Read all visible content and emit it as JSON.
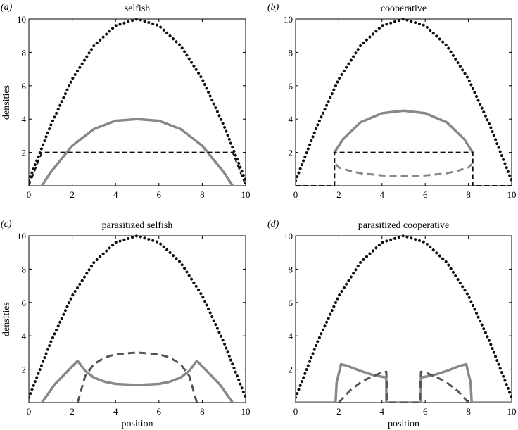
{
  "chart_data": [
    {
      "type": "line",
      "panel_label": "(a)",
      "title": "selfish",
      "xlabel": "",
      "ylabel": "densities",
      "xlim": [
        0,
        10
      ],
      "ylim": [
        0,
        10
      ],
      "xticks": [
        "0",
        "2",
        "4",
        "6",
        "8",
        "10"
      ],
      "yticks": [
        "2",
        "4",
        "6",
        "8",
        "10"
      ],
      "series": [
        {
          "style": "dotted",
          "color": "#111111",
          "x": [
            0,
            1,
            2,
            3,
            4,
            5,
            6,
            7,
            8,
            9,
            10
          ],
          "y": [
            0.3,
            3.6,
            6.4,
            8.4,
            9.6,
            10,
            9.6,
            8.4,
            6.4,
            3.6,
            0.3
          ]
        },
        {
          "style": "solid",
          "color": "#888888",
          "x": [
            0.6,
            1.0,
            2.0,
            3.0,
            4.0,
            5.0,
            6.0,
            7.0,
            8.0,
            9.0,
            9.4
          ],
          "y": [
            0,
            0.8,
            2.4,
            3.4,
            3.9,
            4.0,
            3.9,
            3.4,
            2.4,
            0.8,
            0
          ]
        },
        {
          "style": "dashed",
          "color": "#111111",
          "x": [
            0,
            0.6,
            9.4,
            10
          ],
          "y": [
            0,
            2.0,
            2.0,
            0
          ]
        }
      ]
    },
    {
      "type": "line",
      "panel_label": "(b)",
      "title": "cooperative",
      "xlabel": "",
      "ylabel": "",
      "xlim": [
        0,
        10
      ],
      "ylim": [
        0,
        10
      ],
      "xticks": [
        "0",
        "2",
        "4",
        "6",
        "8",
        "10"
      ],
      "yticks": [
        "2",
        "4",
        "6",
        "8",
        "10"
      ],
      "series": [
        {
          "style": "dotted",
          "color": "#111111",
          "x": [
            0,
            1,
            2,
            3,
            4,
            5,
            6,
            7,
            8,
            9,
            10
          ],
          "y": [
            0.3,
            3.6,
            6.4,
            8.4,
            9.6,
            10,
            9.6,
            8.4,
            6.4,
            3.6,
            0.3
          ]
        },
        {
          "style": "solid",
          "color": "#888888",
          "x": [
            1.8,
            2.2,
            3.0,
            4.0,
            5.0,
            6.0,
            7.0,
            7.8,
            8.2
          ],
          "y": [
            2.0,
            2.8,
            3.8,
            4.35,
            4.5,
            4.35,
            3.8,
            2.8,
            2.0
          ]
        },
        {
          "style": "dashed",
          "color": "#888888",
          "x": [
            1.85,
            2.0,
            2.5,
            3.0,
            4.0,
            5.0,
            6.0,
            7.0,
            7.5,
            8.0,
            8.15
          ],
          "y": [
            1.3,
            1.1,
            0.9,
            0.75,
            0.62,
            0.58,
            0.62,
            0.75,
            0.9,
            1.1,
            1.3
          ]
        },
        {
          "style": "dashed",
          "color": "#111111",
          "x": [
            0,
            1.8,
            1.8,
            8.2,
            8.2,
            10
          ],
          "y": [
            0,
            0,
            2.0,
            2.0,
            0,
            0
          ]
        }
      ]
    },
    {
      "type": "line",
      "panel_label": "(c)",
      "title": "parasitized selfish",
      "xlabel": "position",
      "ylabel": "densities",
      "xlim": [
        0,
        10
      ],
      "ylim": [
        0,
        10
      ],
      "xticks": [
        "0",
        "2",
        "4",
        "6",
        "8",
        "10"
      ],
      "yticks": [
        "2",
        "4",
        "6",
        "8",
        "10"
      ],
      "series": [
        {
          "style": "dotted",
          "color": "#111111",
          "x": [
            0,
            1,
            2,
            3,
            4,
            5,
            6,
            7,
            8,
            9,
            10
          ],
          "y": [
            0.3,
            3.6,
            6.4,
            8.4,
            9.6,
            10,
            9.6,
            8.4,
            6.4,
            3.6,
            0.3
          ]
        },
        {
          "style": "solid",
          "color": "#888888",
          "x": [
            0.6,
            1.2,
            1.8,
            2.25,
            2.6,
            3.0,
            3.5,
            4.0,
            5.0,
            6.0,
            6.5,
            7.0,
            7.4,
            7.75,
            8.2,
            8.8,
            9.4
          ],
          "y": [
            0,
            1.1,
            1.9,
            2.5,
            1.9,
            1.5,
            1.25,
            1.12,
            1.05,
            1.12,
            1.25,
            1.5,
            1.9,
            2.5,
            1.9,
            1.1,
            0
          ]
        },
        {
          "style": "dashed",
          "color": "#555555",
          "x": [
            2.25,
            2.6,
            3.0,
            3.5,
            4.0,
            5.0,
            6.0,
            6.5,
            7.0,
            7.4,
            7.75
          ],
          "y": [
            0,
            1.6,
            2.3,
            2.7,
            2.9,
            3.0,
            2.9,
            2.7,
            2.3,
            1.6,
            0
          ]
        }
      ]
    },
    {
      "type": "line",
      "panel_label": "(d)",
      "title": "parasitized cooperative",
      "xlabel": "position",
      "ylabel": "",
      "xlim": [
        0,
        10
      ],
      "ylim": [
        0,
        10
      ],
      "xticks": [
        "0",
        "2",
        "4",
        "6",
        "8",
        "10"
      ],
      "yticks": [
        "2",
        "4",
        "6",
        "8",
        "10"
      ],
      "series": [
        {
          "style": "dotted",
          "color": "#111111",
          "x": [
            0,
            1,
            2,
            3,
            4,
            5,
            6,
            7,
            8,
            9,
            10
          ],
          "y": [
            0.3,
            3.6,
            6.4,
            8.4,
            9.6,
            10,
            9.6,
            8.4,
            6.4,
            3.6,
            0.3
          ]
        },
        {
          "style": "solid",
          "color": "#888888",
          "x": [
            0,
            1.85,
            1.9,
            2.1,
            2.4,
            3.0,
            3.6,
            4.2,
            4.2,
            5.8,
            5.8,
            6.4,
            7.0,
            7.6,
            7.9,
            8.1,
            8.15,
            10
          ],
          "y": [
            0,
            0,
            1.2,
            2.3,
            2.2,
            1.9,
            1.65,
            1.5,
            0,
            0,
            1.5,
            1.65,
            1.9,
            2.2,
            2.3,
            1.2,
            0,
            0
          ]
        },
        {
          "style": "dashed",
          "color": "#555555",
          "x": [
            2.0,
            2.5,
            3.0,
            3.5,
            4.0,
            4.2,
            4.25,
            5.75,
            5.8,
            6.0,
            6.5,
            7.0,
            7.5,
            8.0
          ],
          "y": [
            0,
            0.7,
            1.2,
            1.55,
            1.8,
            1.85,
            0,
            0,
            1.85,
            1.8,
            1.55,
            1.2,
            0.7,
            0
          ]
        }
      ]
    }
  ]
}
